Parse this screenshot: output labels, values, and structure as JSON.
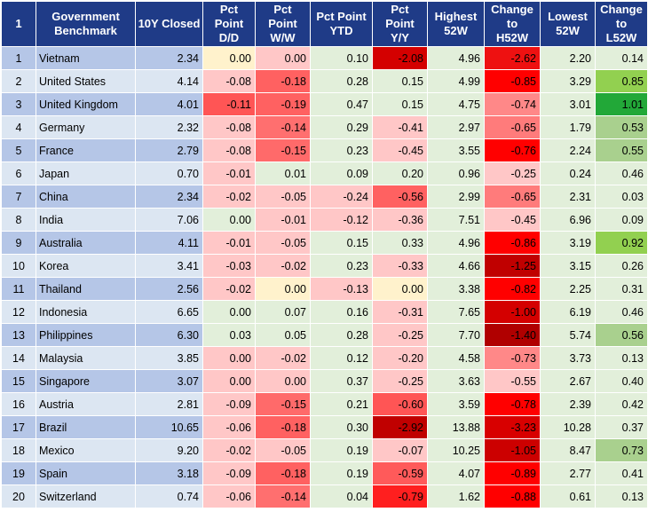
{
  "table": {
    "headers": [
      "1",
      "Government Benchmark",
      "10Y Closed",
      "Pct Point D/D",
      "Pct Point W/W",
      "Pct Point YTD",
      "Pct Point Y/Y",
      "Highest 52W",
      "Change to H52W",
      "Lowest 52W",
      "Change to L52W"
    ],
    "header_lines": [
      [
        "1"
      ],
      [
        "Government",
        "Benchmark"
      ],
      [
        "10Y Closed"
      ],
      [
        "Pct",
        "Point",
        "D/D"
      ],
      [
        "Pct",
        "Point",
        "W/W"
      ],
      [
        "Pct Point",
        "YTD"
      ],
      [
        "Pct",
        "Point",
        "Y/Y"
      ],
      [
        "Highest",
        "52W"
      ],
      [
        "Change",
        "to",
        "H52W"
      ],
      [
        "Lowest",
        "52W"
      ],
      [
        "Change",
        "to",
        "L52W"
      ]
    ],
    "rows": [
      {
        "idx": "1",
        "name": "Vietnam",
        "close": "2.34",
        "dd": "0.00",
        "ww": "0.00",
        "ytd": "0.10",
        "yy": "-2.08",
        "h52": "4.96",
        "ch52": "-2.62",
        "l52": "2.20",
        "cl52": "0.14",
        "bg": {
          "dd": "#fff2cc",
          "ww": "#ffc7c7",
          "ytd": "#e2efda",
          "yy": "#d40000",
          "h52": "#e2efda",
          "ch52": "#ee1111",
          "l52": "#e2efda",
          "cl52": "#e2efda"
        }
      },
      {
        "idx": "2",
        "name": "United States",
        "close": "4.14",
        "dd": "-0.08",
        "ww": "-0.18",
        "ytd": "0.28",
        "yy": "0.15",
        "h52": "4.99",
        "ch52": "-0.85",
        "l52": "3.29",
        "cl52": "0.85",
        "bg": {
          "dd": "#ffc7c7",
          "ww": "#ff6161",
          "ytd": "#e2efda",
          "yy": "#e2efda",
          "h52": "#e2efda",
          "ch52": "#ff0000",
          "l52": "#e2efda",
          "cl52": "#92d050"
        }
      },
      {
        "idx": "3",
        "name": "United Kingdom",
        "close": "4.01",
        "dd": "-0.11",
        "ww": "-0.19",
        "ytd": "0.47",
        "yy": "0.15",
        "h52": "4.75",
        "ch52": "-0.74",
        "l52": "3.01",
        "cl52": "1.01",
        "bg": {
          "dd": "#ff5555",
          "ww": "#ff6161",
          "ytd": "#e2efda",
          "yy": "#e2efda",
          "h52": "#e2efda",
          "ch52": "#ff8888",
          "l52": "#e2efda",
          "cl52": "#22a838"
        }
      },
      {
        "idx": "4",
        "name": "Germany",
        "close": "2.32",
        "dd": "-0.08",
        "ww": "-0.14",
        "ytd": "0.29",
        "yy": "-0.41",
        "h52": "2.97",
        "ch52": "-0.65",
        "l52": "1.79",
        "cl52": "0.53",
        "bg": {
          "dd": "#ffc7c7",
          "ww": "#ff6f6f",
          "ytd": "#e2efda",
          "yy": "#ffc7c7",
          "h52": "#e2efda",
          "ch52": "#ff7b7b",
          "l52": "#e2efda",
          "cl52": "#a9d08e"
        }
      },
      {
        "idx": "5",
        "name": "France",
        "close": "2.79",
        "dd": "-0.08",
        "ww": "-0.15",
        "ytd": "0.23",
        "yy": "-0.45",
        "h52": "3.55",
        "ch52": "-0.76",
        "l52": "2.24",
        "cl52": "0.55",
        "bg": {
          "dd": "#ffc7c7",
          "ww": "#ff6a6a",
          "ytd": "#e2efda",
          "yy": "#ffc7c7",
          "h52": "#e2efda",
          "ch52": "#ff0000",
          "l52": "#e2efda",
          "cl52": "#a9d08e"
        }
      },
      {
        "idx": "6",
        "name": "Japan",
        "close": "0.70",
        "dd": "-0.01",
        "ww": "0.01",
        "ytd": "0.09",
        "yy": "0.20",
        "h52": "0.96",
        "ch52": "-0.25",
        "l52": "0.24",
        "cl52": "0.46",
        "bg": {
          "dd": "#ffc7c7",
          "ww": "#e2efda",
          "ytd": "#e2efda",
          "yy": "#e2efda",
          "h52": "#e2efda",
          "ch52": "#ffc7c7",
          "l52": "#e2efda",
          "cl52": "#e2efda"
        }
      },
      {
        "idx": "7",
        "name": "China",
        "close": "2.34",
        "dd": "-0.02",
        "ww": "-0.05",
        "ytd": "-0.24",
        "yy": "-0.56",
        "h52": "2.99",
        "ch52": "-0.65",
        "l52": "2.31",
        "cl52": "0.03",
        "bg": {
          "dd": "#ffc7c7",
          "ww": "#ffc7c7",
          "ytd": "#ffc7c7",
          "yy": "#ff6161",
          "h52": "#e2efda",
          "ch52": "#ff7b7b",
          "l52": "#e2efda",
          "cl52": "#e2efda"
        }
      },
      {
        "idx": "8",
        "name": "India",
        "close": "7.06",
        "dd": "0.00",
        "ww": "-0.01",
        "ytd": "-0.12",
        "yy": "-0.36",
        "h52": "7.51",
        "ch52": "-0.45",
        "l52": "6.96",
        "cl52": "0.09",
        "bg": {
          "dd": "#e2efda",
          "ww": "#ffc7c7",
          "ytd": "#ffc7c7",
          "yy": "#ffc7c7",
          "h52": "#e2efda",
          "ch52": "#ffc7c7",
          "l52": "#e2efda",
          "cl52": "#e2efda"
        }
      },
      {
        "idx": "9",
        "name": "Australia",
        "close": "4.11",
        "dd": "-0.01",
        "ww": "-0.05",
        "ytd": "0.15",
        "yy": "0.33",
        "h52": "4.96",
        "ch52": "-0.86",
        "l52": "3.19",
        "cl52": "0.92",
        "bg": {
          "dd": "#ffc7c7",
          "ww": "#ffc7c7",
          "ytd": "#e2efda",
          "yy": "#e2efda",
          "h52": "#e2efda",
          "ch52": "#ff0000",
          "l52": "#e2efda",
          "cl52": "#92d050"
        }
      },
      {
        "idx": "10",
        "name": "Korea",
        "close": "3.41",
        "dd": "-0.03",
        "ww": "-0.02",
        "ytd": "0.23",
        "yy": "-0.33",
        "h52": "4.66",
        "ch52": "-1.25",
        "l52": "3.15",
        "cl52": "0.26",
        "bg": {
          "dd": "#ffc7c7",
          "ww": "#ffc7c7",
          "ytd": "#e2efda",
          "yy": "#ffc7c7",
          "h52": "#e2efda",
          "ch52": "#c00000",
          "l52": "#e2efda",
          "cl52": "#e2efda"
        }
      },
      {
        "idx": "11",
        "name": "Thailand",
        "close": "2.56",
        "dd": "-0.02",
        "ww": "0.00",
        "ytd": "-0.13",
        "yy": "0.00",
        "h52": "3.38",
        "ch52": "-0.82",
        "l52": "2.25",
        "cl52": "0.31",
        "bg": {
          "dd": "#ffc7c7",
          "ww": "#fff2cc",
          "ytd": "#ffc7c7",
          "yy": "#fff2cc",
          "h52": "#e2efda",
          "ch52": "#ff0000",
          "l52": "#e2efda",
          "cl52": "#e2efda"
        }
      },
      {
        "idx": "12",
        "name": "Indonesia",
        "close": "6.65",
        "dd": "0.00",
        "ww": "0.07",
        "ytd": "0.16",
        "yy": "-0.31",
        "h52": "7.65",
        "ch52": "-1.00",
        "l52": "6.19",
        "cl52": "0.46",
        "bg": {
          "dd": "#e2efda",
          "ww": "#e2efda",
          "ytd": "#e2efda",
          "yy": "#ffc7c7",
          "h52": "#e2efda",
          "ch52": "#d40000",
          "l52": "#e2efda",
          "cl52": "#e2efda"
        }
      },
      {
        "idx": "13",
        "name": "Philippines",
        "close": "6.30",
        "dd": "0.03",
        "ww": "0.05",
        "ytd": "0.28",
        "yy": "-0.25",
        "h52": "7.70",
        "ch52": "-1.40",
        "l52": "5.74",
        "cl52": "0.56",
        "bg": {
          "dd": "#e2efda",
          "ww": "#e2efda",
          "ytd": "#e2efda",
          "yy": "#ffc7c7",
          "h52": "#e2efda",
          "ch52": "#b00000",
          "l52": "#e2efda",
          "cl52": "#a9d08e"
        }
      },
      {
        "idx": "14",
        "name": "Malaysia",
        "close": "3.85",
        "dd": "0.00",
        "ww": "-0.02",
        "ytd": "0.12",
        "yy": "-0.20",
        "h52": "4.58",
        "ch52": "-0.73",
        "l52": "3.73",
        "cl52": "0.13",
        "bg": {
          "dd": "#ffc7c7",
          "ww": "#ffc7c7",
          "ytd": "#e2efda",
          "yy": "#ffc7c7",
          "h52": "#e2efda",
          "ch52": "#ff8888",
          "l52": "#e2efda",
          "cl52": "#e2efda"
        }
      },
      {
        "idx": "15",
        "name": "Singapore",
        "close": "3.07",
        "dd": "0.00",
        "ww": "0.00",
        "ytd": "0.37",
        "yy": "-0.25",
        "h52": "3.63",
        "ch52": "-0.55",
        "l52": "2.67",
        "cl52": "0.40",
        "bg": {
          "dd": "#ffc7c7",
          "ww": "#ffc7c7",
          "ytd": "#e2efda",
          "yy": "#ffc7c7",
          "h52": "#e2efda",
          "ch52": "#ffc7c7",
          "l52": "#e2efda",
          "cl52": "#e2efda"
        }
      },
      {
        "idx": "16",
        "name": "Austria",
        "close": "2.81",
        "dd": "-0.09",
        "ww": "-0.15",
        "ytd": "0.21",
        "yy": "-0.60",
        "h52": "3.59",
        "ch52": "-0.78",
        "l52": "2.39",
        "cl52": "0.42",
        "bg": {
          "dd": "#ffc7c7",
          "ww": "#ff6a6a",
          "ytd": "#e2efda",
          "yy": "#ff5555",
          "h52": "#e2efda",
          "ch52": "#ff0000",
          "l52": "#e2efda",
          "cl52": "#e2efda"
        }
      },
      {
        "idx": "17",
        "name": "Brazil",
        "close": "10.65",
        "dd": "-0.06",
        "ww": "-0.18",
        "ytd": "0.30",
        "yy": "-2.92",
        "h52": "13.88",
        "ch52": "-3.23",
        "l52": "10.28",
        "cl52": "0.37",
        "bg": {
          "dd": "#ffc7c7",
          "ww": "#ff6161",
          "ytd": "#e2efda",
          "yy": "#c00000",
          "h52": "#e2efda",
          "ch52": "#d80000",
          "l52": "#e2efda",
          "cl52": "#e2efda"
        }
      },
      {
        "idx": "18",
        "name": "Mexico",
        "close": "9.20",
        "dd": "-0.02",
        "ww": "-0.05",
        "ytd": "0.19",
        "yy": "-0.07",
        "h52": "10.25",
        "ch52": "-1.05",
        "l52": "8.47",
        "cl52": "0.73",
        "bg": {
          "dd": "#ffc7c7",
          "ww": "#ffc7c7",
          "ytd": "#e2efda",
          "yy": "#ffc7c7",
          "h52": "#e2efda",
          "ch52": "#cc0000",
          "l52": "#e2efda",
          "cl52": "#a9d08e"
        }
      },
      {
        "idx": "19",
        "name": "Spain",
        "close": "3.18",
        "dd": "-0.09",
        "ww": "-0.18",
        "ytd": "0.19",
        "yy": "-0.59",
        "h52": "4.07",
        "ch52": "-0.89",
        "l52": "2.77",
        "cl52": "0.41",
        "bg": {
          "dd": "#ffc7c7",
          "ww": "#ff6161",
          "ytd": "#e2efda",
          "yy": "#ff5a5a",
          "h52": "#e2efda",
          "ch52": "#ff0000",
          "l52": "#e2efda",
          "cl52": "#e2efda"
        }
      },
      {
        "idx": "20",
        "name": "Switzerland",
        "close": "0.74",
        "dd": "-0.06",
        "ww": "-0.14",
        "ytd": "0.04",
        "yy": "-0.79",
        "h52": "1.62",
        "ch52": "-0.88",
        "l52": "0.61",
        "cl52": "0.13",
        "bg": {
          "dd": "#ffc7c7",
          "ww": "#ff6f6f",
          "ytd": "#e2efda",
          "yy": "#ff1f1f",
          "h52": "#e2efda",
          "ch52": "#ff0000",
          "l52": "#e2efda",
          "cl52": "#e2efda"
        }
      }
    ]
  }
}
